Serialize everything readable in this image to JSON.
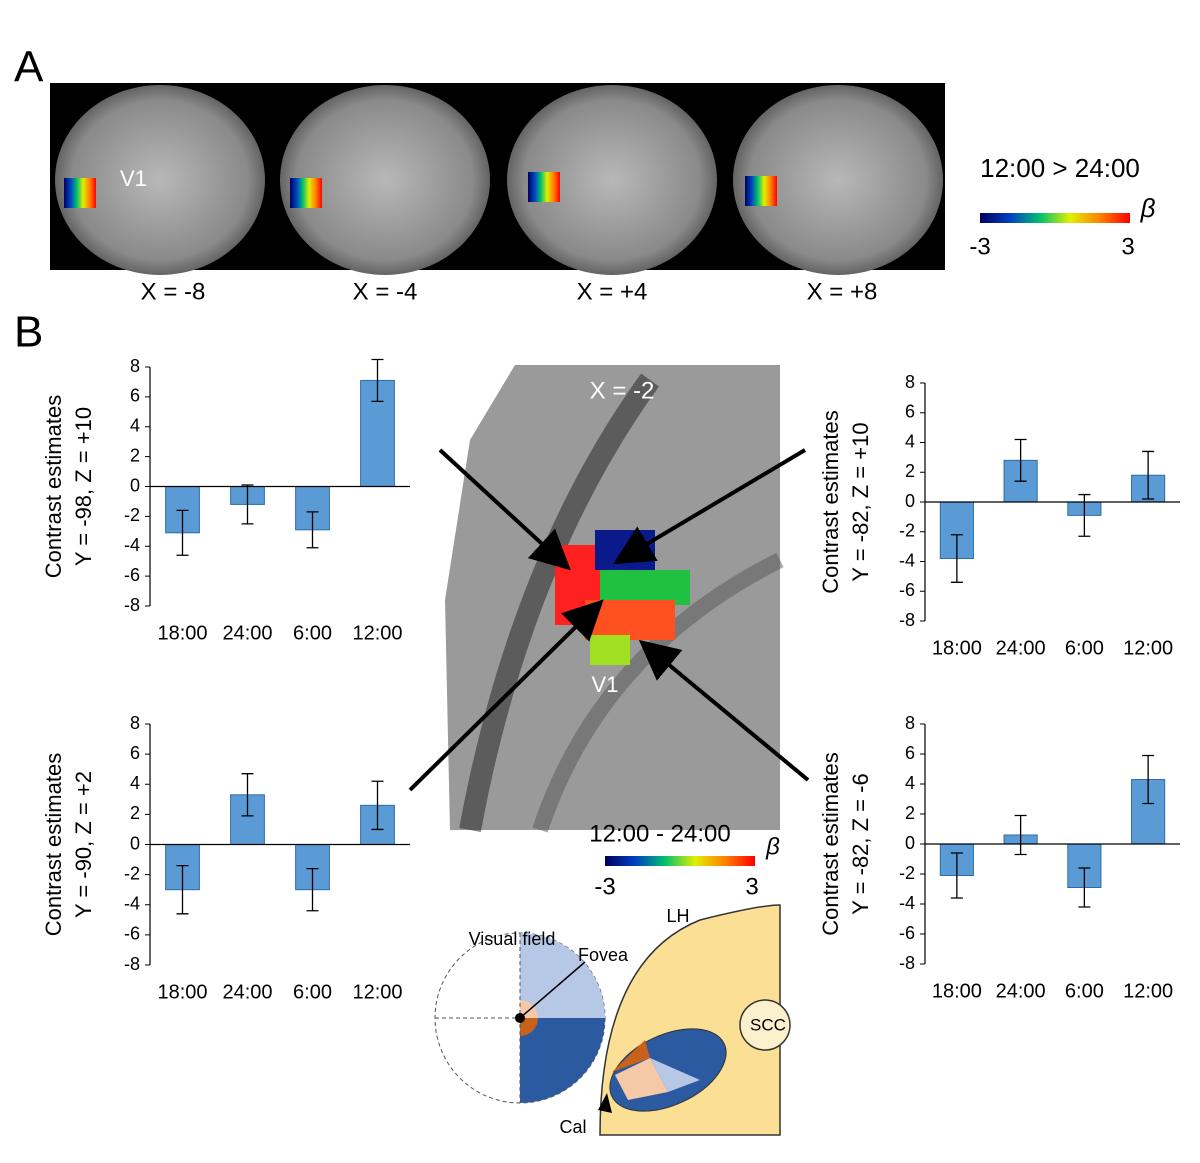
{
  "panel_a": {
    "label": "A",
    "slices": [
      "X = -8",
      "X = -4",
      "X = +4",
      "X = +8"
    ],
    "region_label": "V1",
    "colorbar": {
      "title": "12:00 > 24:00",
      "symbol": "β",
      "min": -3,
      "max": 3
    }
  },
  "panel_b": {
    "label": "B",
    "slice": "X = -2",
    "region_label": "V1",
    "colorbar": {
      "title": "12:00 - 24:00",
      "symbol": "β",
      "min": -3,
      "max": 3
    },
    "diagram": {
      "visual_field": "Visual field",
      "fovea": "Fovea",
      "hemisphere": "LH",
      "scc": "SCC",
      "cal": "Cal"
    }
  },
  "chart_data": [
    {
      "type": "bar",
      "ylabel": [
        "Contrast estimates",
        "Y = -98, Z = +10"
      ],
      "categories": [
        "18:00",
        "24:00",
        "6:00",
        "12:00"
      ],
      "values": [
        -3.1,
        -1.2,
        -2.9,
        7.1
      ],
      "errors": [
        1.5,
        1.3,
        1.2,
        1.4
      ],
      "color": "#5b9bd5",
      "ylim": [
        -8,
        8
      ],
      "yticks": [
        -8,
        -6,
        -4,
        -2,
        0,
        2,
        4,
        6,
        8
      ]
    },
    {
      "type": "bar",
      "ylabel": [
        "Contrast estimates",
        "Y = -82, Z = +10"
      ],
      "categories": [
        "18:00",
        "24:00",
        "6:00",
        "12:00"
      ],
      "values": [
        -3.8,
        2.8,
        -0.9,
        1.8
      ],
      "errors": [
        1.6,
        1.4,
        1.4,
        1.6
      ],
      "color": "#5b9bd5",
      "ylim": [
        -8,
        8
      ],
      "yticks": [
        -8,
        -6,
        -4,
        -2,
        0,
        2,
        4,
        6,
        8
      ]
    },
    {
      "type": "bar",
      "ylabel": [
        "Contrast estimates",
        "Y = -90, Z = +2"
      ],
      "categories": [
        "18:00",
        "24:00",
        "6:00",
        "12:00"
      ],
      "values": [
        -3.0,
        3.3,
        -3.0,
        2.6
      ],
      "errors": [
        1.6,
        1.4,
        1.4,
        1.6
      ],
      "color": "#5b9bd5",
      "ylim": [
        -8,
        8
      ],
      "yticks": [
        -8,
        -6,
        -4,
        -2,
        0,
        2,
        4,
        6,
        8
      ]
    },
    {
      "type": "bar",
      "ylabel": [
        "Contrast estimates",
        "Y = -82, Z = -6"
      ],
      "categories": [
        "18:00",
        "24:00",
        "6:00",
        "12:00"
      ],
      "values": [
        -2.1,
        0.6,
        -2.9,
        4.3
      ],
      "errors": [
        1.5,
        1.3,
        1.3,
        1.6
      ],
      "color": "#5b9bd5",
      "ylim": [
        -8,
        8
      ],
      "yticks": [
        -8,
        -6,
        -4,
        -2,
        0,
        2,
        4,
        6,
        8
      ]
    }
  ]
}
